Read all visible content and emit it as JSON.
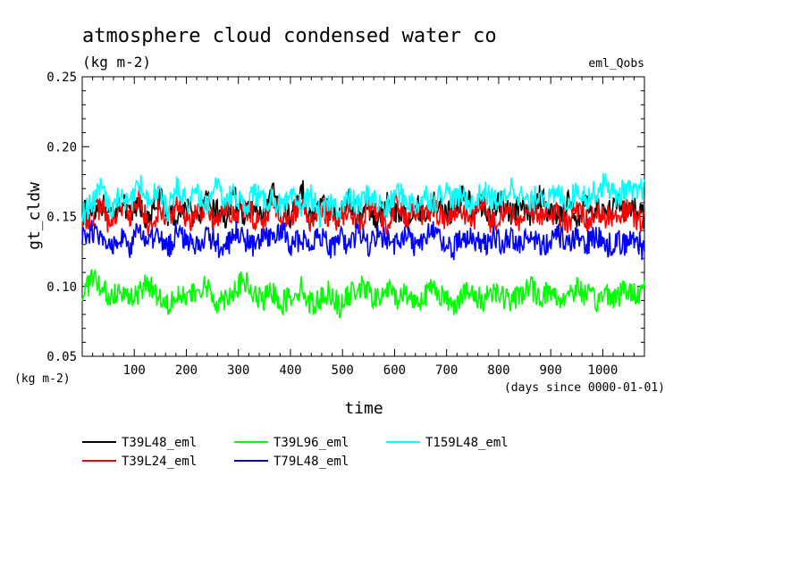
{
  "chart_data": {
    "type": "line",
    "title": "atmosphere cloud condensed water co",
    "title_unit": "(kg m-2)",
    "experiment": "eml_Qobs",
    "xlabel": "time",
    "ylabel": "gt_cldw",
    "x_unit": "(days since 0000-01-01)",
    "y_unit": "(kg m-2)",
    "xlim": [
      0,
      1080
    ],
    "ylim": [
      0.05,
      0.25
    ],
    "x_ticks": [
      "100",
      "200",
      "300",
      "400",
      "500",
      "600",
      "700",
      "800",
      "900",
      "1000"
    ],
    "y_ticks": [
      "0.05",
      "0.10",
      "0.15",
      "0.20",
      "0.25"
    ],
    "legend_position": "below",
    "series": [
      {
        "name": "T39L48_eml",
        "color": "#000000",
        "values": [
          0.152,
          0.155,
          0.16,
          0.148,
          0.162,
          0.15,
          0.158,
          0.145,
          0.165,
          0.152,
          0.15,
          0.158,
          0.147,
          0.16,
          0.155,
          0.149,
          0.163,
          0.151,
          0.157,
          0.146,
          0.166,
          0.153,
          0.15,
          0.172,
          0.148,
          0.158,
          0.155,
          0.15,
          0.162,
          0.149,
          0.156,
          0.147,
          0.16,
          0.153,
          0.15,
          0.158,
          0.151,
          0.162,
          0.155,
          0.15,
          0.168,
          0.154,
          0.158,
          0.15,
          0.163,
          0.152,
          0.157,
          0.149,
          0.165,
          0.153,
          0.151,
          0.16,
          0.15,
          0.158,
          0.155,
          0.152,
          0.163,
          0.151,
          0.157,
          0.15
        ]
      },
      {
        "name": "T39L24_eml",
        "color": "#ff0000",
        "values": [
          0.145,
          0.15,
          0.158,
          0.142,
          0.16,
          0.148,
          0.165,
          0.14,
          0.155,
          0.15,
          0.16,
          0.145,
          0.152,
          0.158,
          0.143,
          0.16,
          0.148,
          0.155,
          0.15,
          0.145,
          0.162,
          0.148,
          0.152,
          0.158,
          0.144,
          0.156,
          0.15,
          0.147,
          0.158,
          0.145,
          0.155,
          0.15,
          0.145,
          0.16,
          0.148,
          0.152,
          0.15,
          0.157,
          0.146,
          0.155,
          0.15,
          0.148,
          0.158,
          0.145,
          0.154,
          0.15,
          0.147,
          0.156,
          0.148,
          0.153,
          0.15,
          0.146,
          0.157,
          0.148,
          0.152,
          0.15,
          0.147,
          0.155,
          0.148,
          0.145
        ]
      },
      {
        "name": "T39L96_eml",
        "color": "#00ff00",
        "values": [
          0.095,
          0.105,
          0.098,
          0.092,
          0.1,
          0.09,
          0.096,
          0.102,
          0.093,
          0.088,
          0.097,
          0.091,
          0.095,
          0.1,
          0.089,
          0.092,
          0.098,
          0.104,
          0.093,
          0.09,
          0.096,
          0.088,
          0.094,
          0.099,
          0.087,
          0.091,
          0.097,
          0.085,
          0.093,
          0.1,
          0.096,
          0.09,
          0.098,
          0.092,
          0.095,
          0.089,
          0.094,
          0.1,
          0.091,
          0.087,
          0.096,
          0.093,
          0.09,
          0.098,
          0.094,
          0.088,
          0.095,
          0.1,
          0.092,
          0.097,
          0.09,
          0.095,
          0.099,
          0.093,
          0.089,
          0.096,
          0.092,
          0.098,
          0.094,
          0.1
        ]
      },
      {
        "name": "T79L48_eml",
        "color": "#0000ff",
        "values": [
          0.135,
          0.14,
          0.132,
          0.128,
          0.138,
          0.125,
          0.142,
          0.13,
          0.136,
          0.127,
          0.14,
          0.133,
          0.129,
          0.137,
          0.131,
          0.126,
          0.139,
          0.134,
          0.128,
          0.136,
          0.132,
          0.141,
          0.129,
          0.135,
          0.13,
          0.138,
          0.127,
          0.134,
          0.131,
          0.139,
          0.128,
          0.136,
          0.133,
          0.13,
          0.138,
          0.129,
          0.135,
          0.14,
          0.131,
          0.127,
          0.137,
          0.133,
          0.129,
          0.136,
          0.131,
          0.134,
          0.128,
          0.138,
          0.132,
          0.13,
          0.136,
          0.129,
          0.134,
          0.131,
          0.137,
          0.128,
          0.133,
          0.13,
          0.136,
          0.125
        ]
      },
      {
        "name": "T159L48_eml",
        "color": "#00ffff",
        "values": [
          0.15,
          0.16,
          0.17,
          0.155,
          0.165,
          0.158,
          0.175,
          0.162,
          0.168,
          0.155,
          0.172,
          0.16,
          0.165,
          0.158,
          0.17,
          0.162,
          0.166,
          0.156,
          0.168,
          0.16,
          0.164,
          0.155,
          0.162,
          0.158,
          0.165,
          0.15,
          0.16,
          0.155,
          0.163,
          0.158,
          0.166,
          0.16,
          0.155,
          0.168,
          0.162,
          0.158,
          0.165,
          0.16,
          0.17,
          0.162,
          0.165,
          0.158,
          0.168,
          0.163,
          0.16,
          0.172,
          0.165,
          0.158,
          0.168,
          0.162,
          0.166,
          0.16,
          0.17,
          0.164,
          0.168,
          0.175,
          0.163,
          0.17,
          0.165,
          0.172
        ]
      }
    ]
  }
}
